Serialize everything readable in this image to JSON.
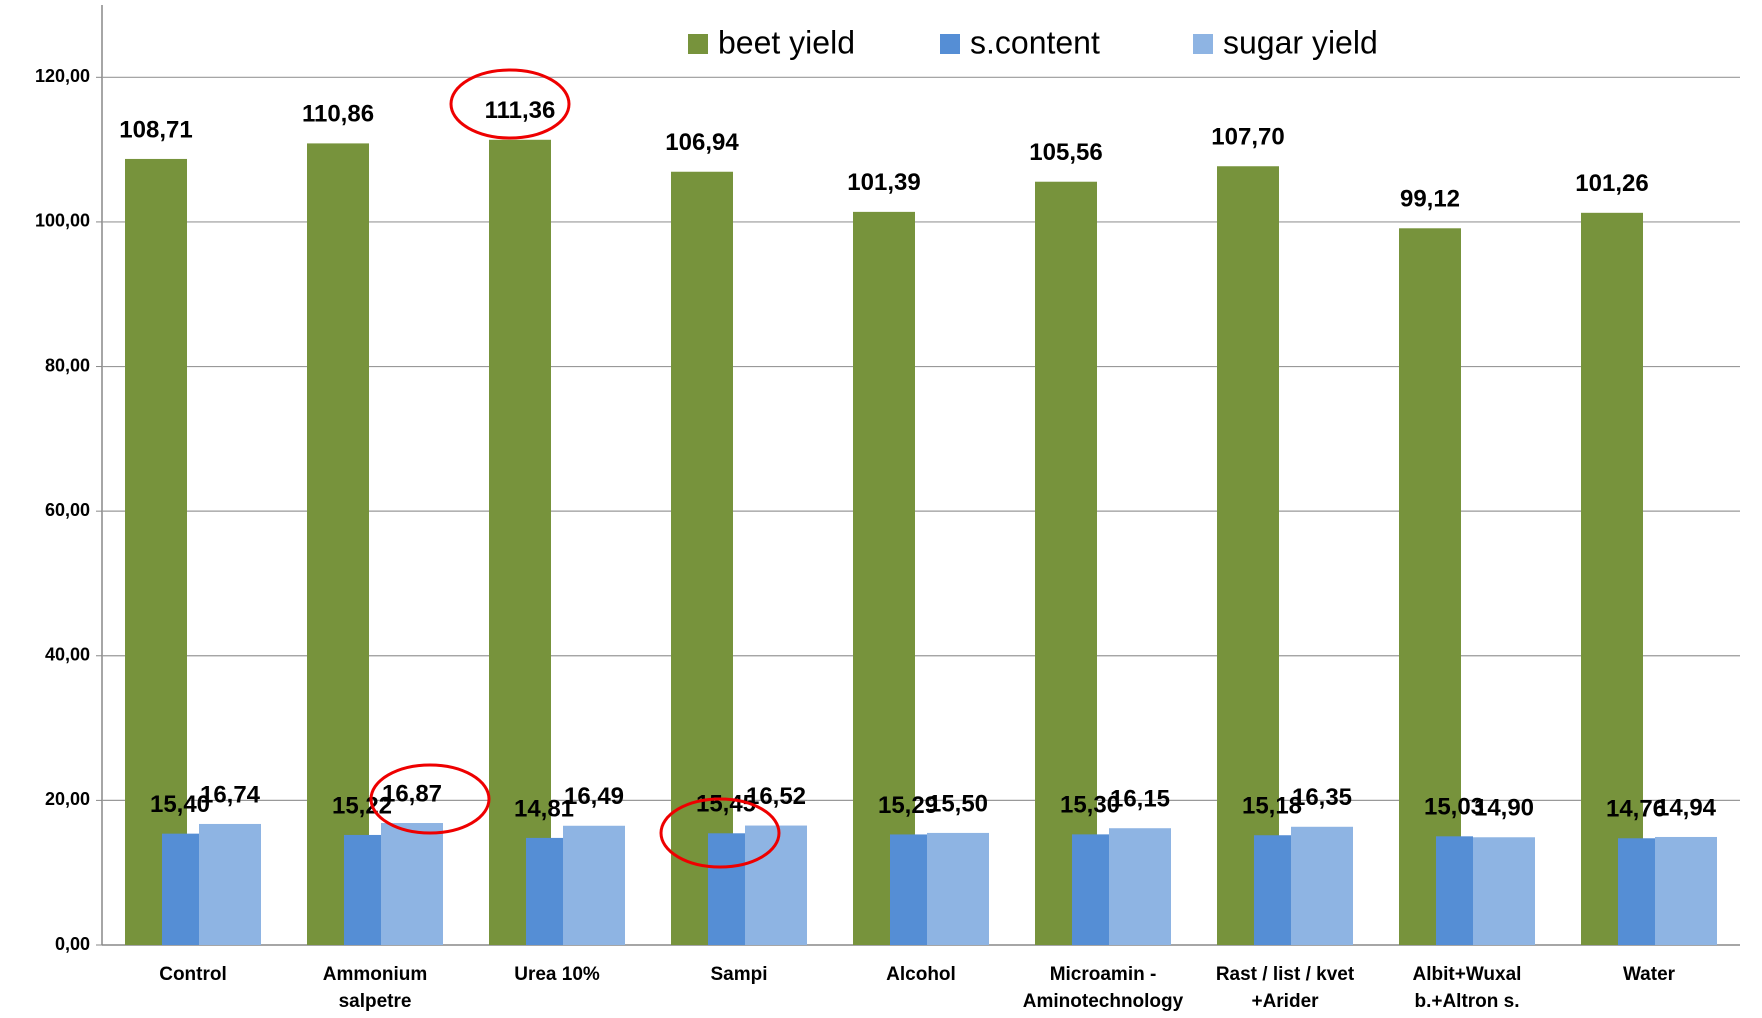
{
  "chart_data": {
    "type": "bar",
    "categories": [
      "Control",
      "Ammonium\nsalpetre",
      "Urea 10%",
      "Sampi",
      "Alcohol",
      "Microamin -\nAminotechnology",
      "Rast / list / kvet\n+Arider",
      "Albit+Wuxal\nb.+Altron s.",
      "Water"
    ],
    "series": [
      {
        "name": "beet yield",
        "color": "#77933c",
        "values": [
          108.71,
          110.86,
          111.36,
          106.94,
          101.39,
          105.56,
          107.7,
          99.12,
          101.26
        ],
        "value_labels": [
          "108,71",
          "110,86",
          "111,36",
          "106,94",
          "101,39",
          "105,56",
          "107,70",
          "99,12",
          "101,26"
        ]
      },
      {
        "name": "s.content",
        "color": "#558ed5",
        "values": [
          15.4,
          15.22,
          14.81,
          15.45,
          15.29,
          15.3,
          15.18,
          15.03,
          14.76
        ],
        "value_labels": [
          "15,40",
          "15,22",
          "14,81",
          "15,45",
          "15,29",
          "15,30",
          "15,18",
          "15,03",
          "14,76"
        ]
      },
      {
        "name": "sugar yield",
        "color": "#8eb4e3",
        "values": [
          16.74,
          16.87,
          16.49,
          16.52,
          15.5,
          16.15,
          16.35,
          14.9,
          14.94
        ],
        "value_labels": [
          "16,74",
          "16,87",
          "16,49",
          "16,52",
          "15,50",
          "16,15",
          "16,35",
          "14,90",
          "14,94"
        ]
      }
    ],
    "ylim": [
      0,
      130
    ],
    "yticks": [
      {
        "value": 0,
        "label": "0,00"
      },
      {
        "value": 20,
        "label": "20,00"
      },
      {
        "value": 40,
        "label": "40,00"
      },
      {
        "value": 60,
        "label": "60,00"
      },
      {
        "value": 80,
        "label": "80,00"
      },
      {
        "value": 100,
        "label": "100,00"
      },
      {
        "value": 120,
        "label": "120,00"
      }
    ],
    "grid": true,
    "legend": "top"
  }
}
